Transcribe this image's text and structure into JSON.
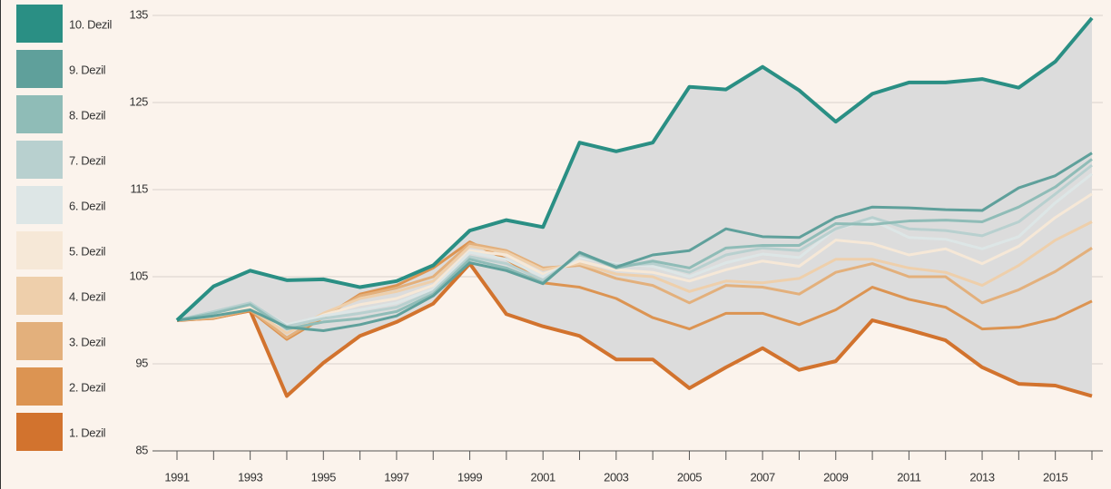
{
  "chart_data": {
    "type": "line",
    "categories": [
      "1991",
      null,
      "1993",
      null,
      "1995",
      null,
      "1997",
      null,
      "1999",
      null,
      "2001",
      null,
      "2003",
      null,
      "2005",
      null,
      "2007",
      null,
      "2009",
      null,
      "2011",
      null,
      "2013",
      null,
      "2015",
      null
    ],
    "ylim": [
      85,
      135
    ],
    "yticks": [
      85,
      95,
      105,
      115,
      125,
      135
    ],
    "grid": true,
    "legend": "left",
    "range_fill": "#dcdcdc",
    "series": [
      {
        "name": "10. Dezil",
        "color": "#2a8f84",
        "values": [
          100,
          103.9,
          105.7,
          104.6,
          104.7,
          103.8,
          104.5,
          106.3,
          110.3,
          111.5,
          110.7,
          120.4,
          119.4,
          120.4,
          126.8,
          126.5,
          129.1,
          126.4,
          122.8,
          126.0,
          127.3,
          127.3,
          127.7,
          126.7,
          129.7,
          134.7
        ]
      },
      {
        "name": "9. Dezil",
        "color": "#5fa09b",
        "values": [
          100,
          100.5,
          101.2,
          99.2,
          98.8,
          99.5,
          100.5,
          102.8,
          106.6,
          105.7,
          104.2,
          107.8,
          106.1,
          107.5,
          108.0,
          110.5,
          109.6,
          109.5,
          111.8,
          113.0,
          112.9,
          112.7,
          112.6,
          115.2,
          116.6,
          119.2
        ]
      },
      {
        "name": "8. Dezil",
        "color": "#8fbcb7",
        "values": [
          100,
          100.8,
          101.8,
          99.0,
          99.8,
          100.2,
          101.0,
          103.0,
          107.0,
          106.0,
          104.3,
          107.7,
          106.0,
          106.8,
          106.0,
          108.3,
          108.6,
          108.6,
          111.1,
          111.0,
          111.4,
          111.5,
          111.3,
          113.0,
          115.3,
          118.5
        ]
      },
      {
        "name": "7. Dezil",
        "color": "#b8d0cf",
        "values": [
          100,
          101,
          102,
          99.3,
          100.2,
          100.8,
          101.5,
          103.3,
          107.3,
          106.5,
          104.6,
          107.5,
          106.3,
          106.5,
          105.5,
          107.5,
          108.3,
          108.0,
          110.5,
          111.8,
          110.5,
          110.3,
          109.7,
          111.3,
          114.5,
          117.8
        ]
      },
      {
        "name": "6. Dezil",
        "color": "#dde6e6",
        "values": [
          100,
          100.8,
          101.8,
          99.5,
          100.5,
          101.2,
          102,
          103.6,
          107.8,
          107,
          105,
          107.2,
          106.5,
          106.2,
          105,
          106.6,
          107.6,
          107.2,
          110.5,
          111.5,
          109.5,
          109.3,
          108.2,
          109.6,
          113.5,
          116.8
        ]
      },
      {
        "name": "5. Dezil",
        "color": "#f6e8d7",
        "values": [
          100,
          100.5,
          101.5,
          99,
          100.6,
          101.8,
          102.5,
          104,
          108,
          107.5,
          105.3,
          106.8,
          105.8,
          105.5,
          104.5,
          105.8,
          106.8,
          106.2,
          109.2,
          108.8,
          107.5,
          108.2,
          106.5,
          108.5,
          111.8,
          114.5
        ]
      },
      {
        "name": "4. Dezil",
        "color": "#eecfab",
        "values": [
          100,
          100.4,
          101.3,
          98.5,
          100.8,
          102.5,
          103.3,
          104.5,
          108.5,
          107.8,
          105.8,
          106.5,
          105.3,
          105,
          103.3,
          104.5,
          104.3,
          104.8,
          107,
          107,
          106,
          105.5,
          104,
          106.3,
          109.2,
          111.3
        ]
      },
      {
        "name": "3. Dezil",
        "color": "#e3b07c",
        "values": [
          100,
          100.3,
          101.2,
          98,
          100.5,
          102.8,
          103.7,
          105,
          108.8,
          108,
          106,
          106.3,
          104.8,
          104,
          102,
          104,
          103.8,
          103,
          105.5,
          106.5,
          105,
          105,
          102,
          103.5,
          105.6,
          108.3
        ]
      },
      {
        "name": "2. Dezil",
        "color": "#dc9452",
        "values": [
          100,
          100.2,
          101.1,
          97.8,
          100.3,
          103,
          104,
          106,
          109,
          107,
          104.3,
          103.8,
          102.5,
          100.3,
          99,
          100.8,
          100.8,
          99.5,
          101.2,
          103.8,
          102.4,
          101.5,
          99,
          99.2,
          100.2,
          102.2
        ]
      },
      {
        "name": "1. Dezil",
        "color": "#d2732e",
        "values": [
          100,
          100.3,
          101.1,
          91.3,
          95.1,
          98.2,
          99.8,
          101.9,
          106.5,
          100.7,
          99.3,
          98.2,
          95.5,
          95.5,
          92.2,
          94.6,
          96.8,
          94.3,
          95.3,
          100.0,
          98.9,
          97.7,
          94.6,
          92.7,
          92.5,
          91.3
        ]
      }
    ]
  }
}
